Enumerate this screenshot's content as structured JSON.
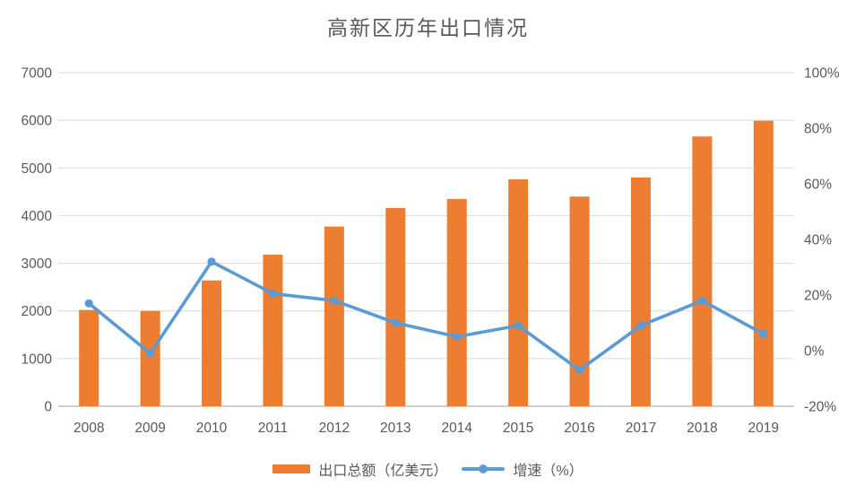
{
  "title": "高新区历年出口情况",
  "legend": [
    {
      "label": "出口总额（亿美元）",
      "color": "#ED7D31",
      "type": "bar"
    },
    {
      "label": "增速（%）",
      "color": "#5B9BD5",
      "type": "line"
    }
  ],
  "colors": {
    "bar": "#ED7D31",
    "line": "#5B9BD5",
    "gridline": "#D9D9D9",
    "axis_line": "#BFBFBF",
    "text": "#595959",
    "background": "#FFFFFF"
  },
  "chart_data": {
    "type": "bar",
    "title": "高新区历年出口情况",
    "categories": [
      "2008",
      "2009",
      "2010",
      "2011",
      "2012",
      "2013",
      "2014",
      "2015",
      "2016",
      "2017",
      "2018",
      "2019"
    ],
    "series": [
      {
        "name": "出口总额（亿美元）",
        "type": "bar",
        "axis": "left",
        "color": "#ED7D31",
        "values": [
          2020,
          2000,
          2640,
          3180,
          3770,
          4160,
          4350,
          4760,
          4400,
          4800,
          5660,
          5990
        ]
      },
      {
        "name": "增速（%）",
        "type": "line",
        "axis": "right",
        "color": "#5B9BD5",
        "values": [
          17,
          -1,
          32,
          20.5,
          18,
          10,
          5,
          9,
          -7,
          9,
          18,
          6
        ]
      }
    ],
    "left_axis": {
      "min": 0,
      "max": 7000,
      "step": 1000,
      "ticks": [
        "0",
        "1000",
        "2000",
        "3000",
        "4000",
        "5000",
        "6000",
        "7000"
      ]
    },
    "right_axis": {
      "min": -20,
      "max": 100,
      "step": 20,
      "ticks": [
        "-20%",
        "0%",
        "20%",
        "40%",
        "60%",
        "80%",
        "100%"
      ]
    },
    "grid": true,
    "legend_position": "bottom"
  }
}
